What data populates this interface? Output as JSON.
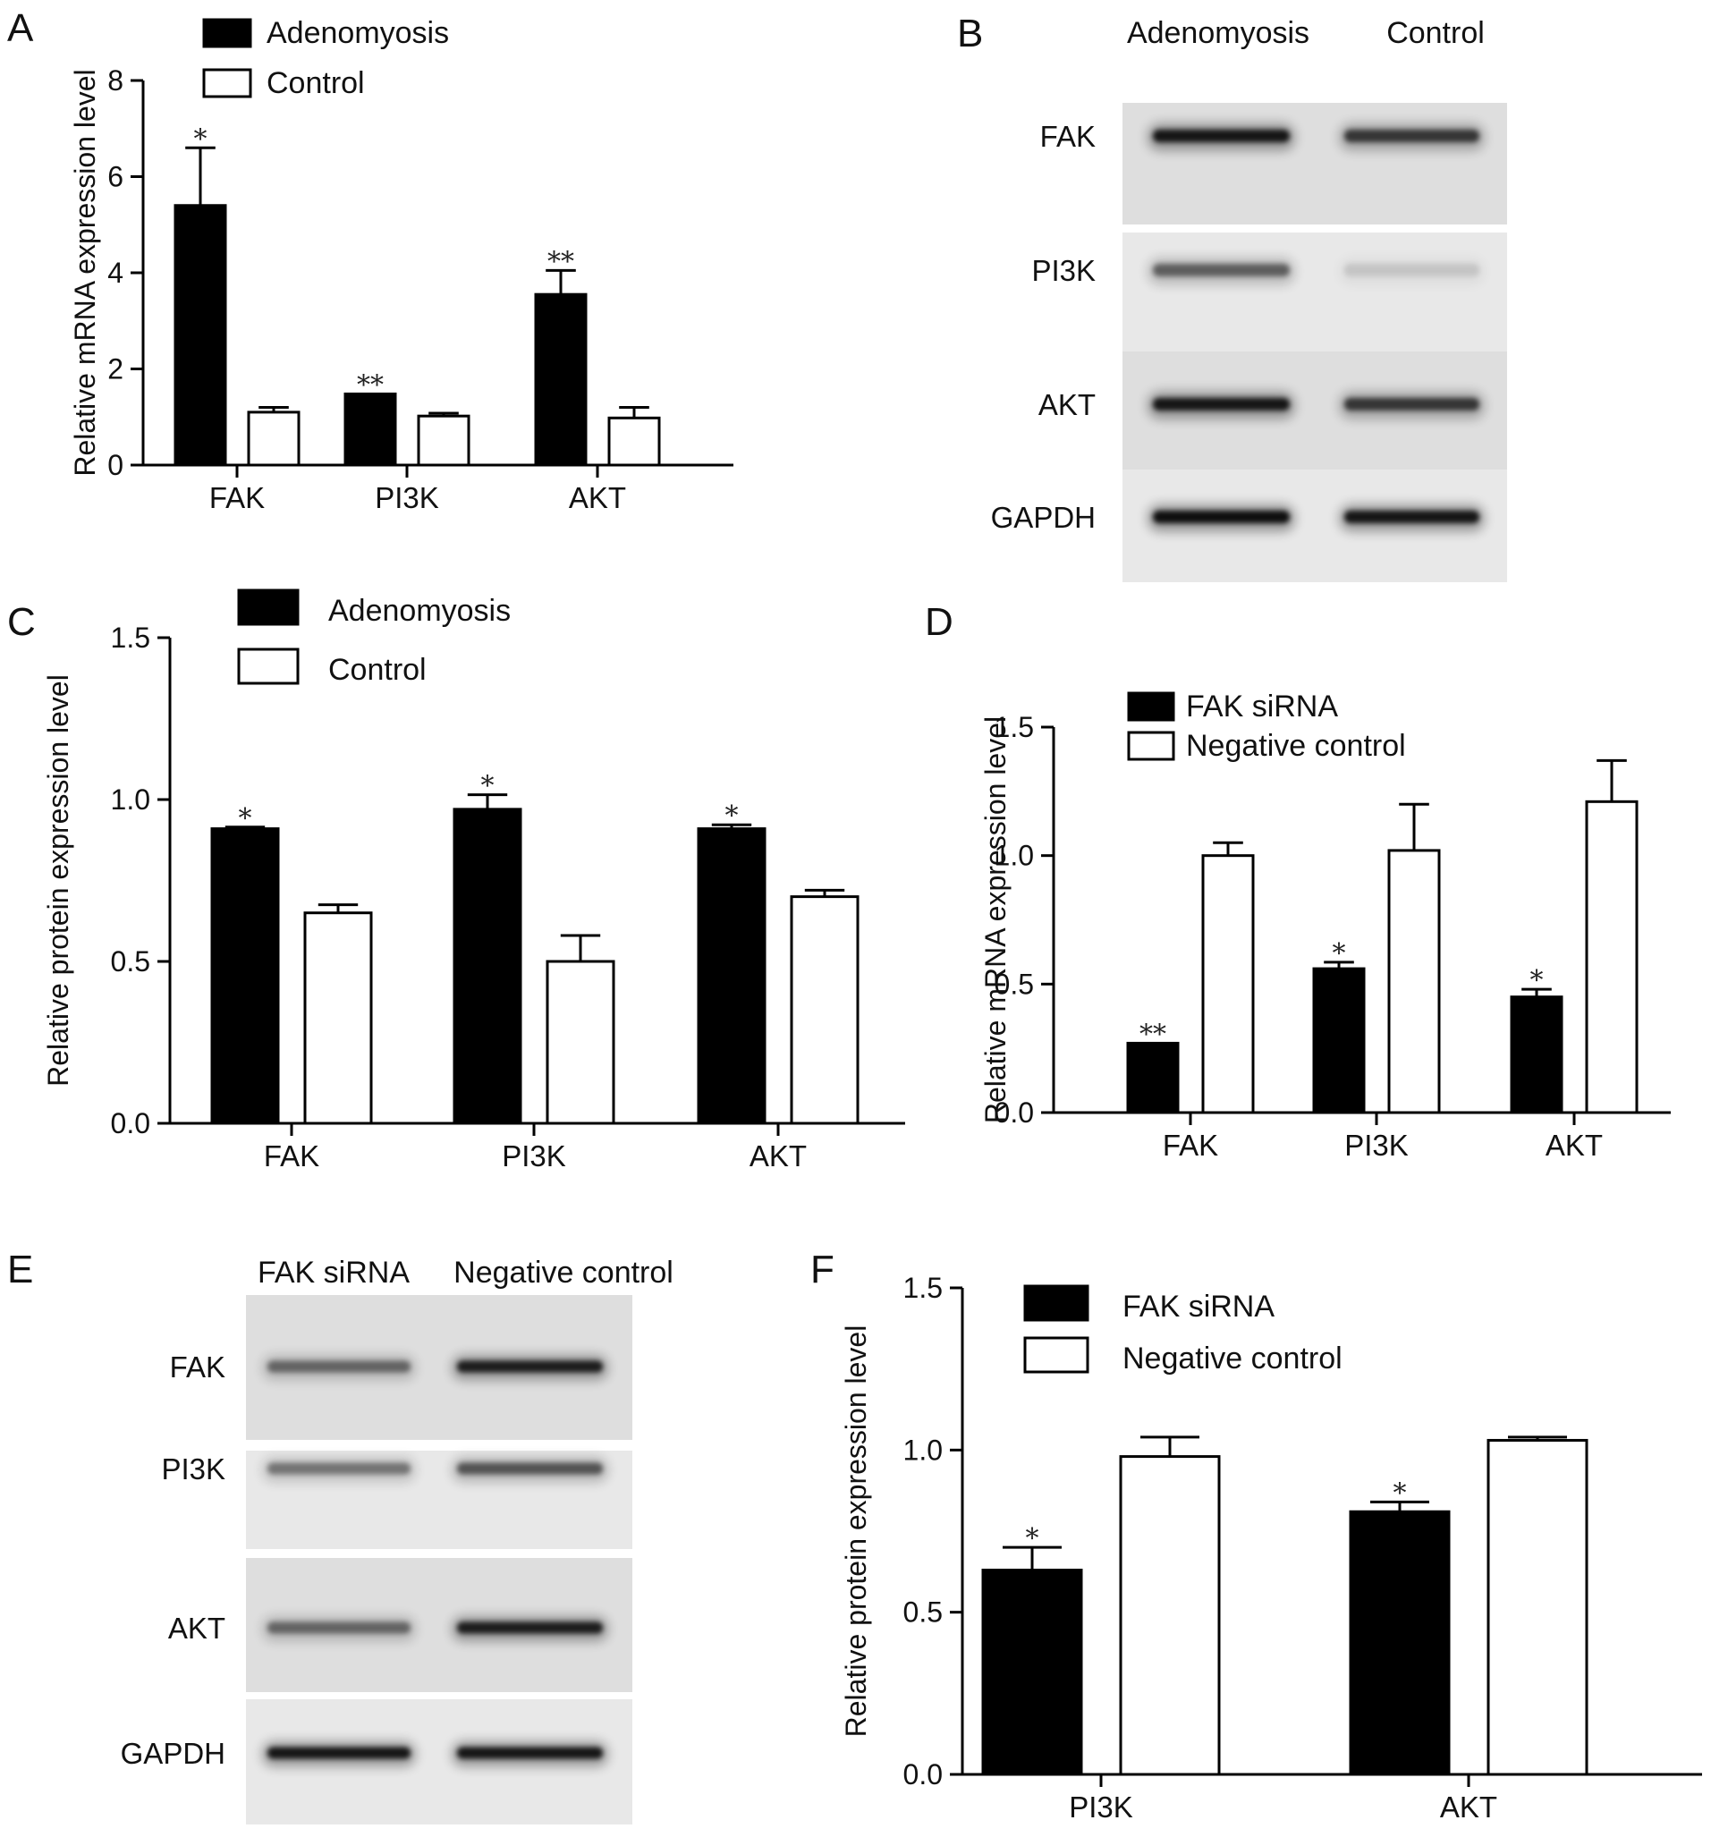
{
  "colors": {
    "series_filled": "#000000",
    "series_open": "#ffffff",
    "axis": "#000000"
  },
  "chart_data": [
    {
      "panel": "A",
      "type": "bar",
      "categories": [
        "FAK",
        "PI3K",
        "AKT"
      ],
      "series": [
        {
          "name": "Adenomyosis",
          "values": [
            5.4,
            1.48,
            3.55
          ],
          "errors": [
            1.2,
            0.0,
            0.5
          ],
          "significance": [
            "*",
            "**",
            "**"
          ]
        },
        {
          "name": "Control",
          "values": [
            1.1,
            1.02,
            0.98
          ],
          "errors": [
            0.1,
            0.06,
            0.22
          ],
          "significance": [
            "",
            "",
            ""
          ]
        }
      ],
      "ylabel": "Relative mRNA expression level",
      "ylim": [
        0,
        8
      ],
      "yticks": [
        0,
        2,
        4,
        6,
        8
      ],
      "ytick_labels": [
        "0",
        "2",
        "4",
        "6",
        "8"
      ],
      "legend_position": "top-left"
    },
    {
      "panel": "C",
      "type": "bar",
      "categories": [
        "FAK",
        "PI3K",
        "AKT"
      ],
      "series": [
        {
          "name": "Adenomyosis",
          "values": [
            0.91,
            0.97,
            0.91
          ],
          "errors": [
            0.005,
            0.045,
            0.012
          ],
          "significance": [
            "*",
            "*",
            "*"
          ]
        },
        {
          "name": "Control",
          "values": [
            0.65,
            0.5,
            0.7
          ],
          "errors": [
            0.025,
            0.08,
            0.02
          ],
          "significance": [
            "",
            "",
            ""
          ]
        }
      ],
      "ylabel": "Relative protein expression level",
      "ylim": [
        0,
        1.5
      ],
      "yticks": [
        0,
        0.5,
        1.0,
        1.5
      ],
      "ytick_labels": [
        "0.0",
        "0.5",
        "1.0",
        "1.5"
      ],
      "legend_position": "top-left"
    },
    {
      "panel": "D",
      "type": "bar",
      "categories": [
        "FAK",
        "PI3K",
        "AKT"
      ],
      "series": [
        {
          "name": "FAK siRNA",
          "values": [
            0.27,
            0.56,
            0.45
          ],
          "errors": [
            0.0,
            0.025,
            0.03
          ],
          "significance": [
            "**",
            "*",
            "*"
          ]
        },
        {
          "name": "Negative control",
          "values": [
            1.0,
            1.02,
            1.21
          ],
          "errors": [
            0.05,
            0.18,
            0.16
          ],
          "significance": [
            "",
            "",
            ""
          ]
        }
      ],
      "ylabel": "Relative mRNA expression level",
      "ylim": [
        0,
        1.5
      ],
      "yticks": [
        0,
        0.5,
        1.0,
        1.5
      ],
      "ytick_labels": [
        "0.0",
        "0.5",
        "1.0",
        "1.5"
      ],
      "legend_position": "top-left"
    },
    {
      "panel": "F",
      "type": "bar",
      "categories": [
        "PI3K",
        "AKT"
      ],
      "series": [
        {
          "name": "FAK siRNA",
          "values": [
            0.63,
            0.81
          ],
          "errors": [
            0.07,
            0.03
          ],
          "significance": [
            "*",
            "*"
          ]
        },
        {
          "name": "Negative control",
          "values": [
            0.98,
            1.03
          ],
          "errors": [
            0.06,
            0.01
          ],
          "significance": [
            "",
            ""
          ]
        }
      ],
      "ylabel": "Relative protein expression level",
      "ylim": [
        0,
        1.5
      ],
      "yticks": [
        0,
        0.5,
        1.0,
        1.5
      ],
      "ytick_labels": [
        "0.0",
        "0.5",
        "1.0",
        "1.5"
      ],
      "legend_position": "top-left"
    }
  ],
  "blots": [
    {
      "panel": "B",
      "columns": [
        "Adenomyosis",
        "Control"
      ],
      "rows": [
        "FAK",
        "PI3K",
        "AKT",
        "GAPDH"
      ],
      "band_intensity": [
        [
          0.95,
          0.75
        ],
        [
          0.55,
          0.12
        ],
        [
          0.95,
          0.75
        ],
        [
          1.0,
          0.95
        ]
      ]
    },
    {
      "panel": "E",
      "columns": [
        "FAK siRNA",
        "Negative control"
      ],
      "rows": [
        "FAK",
        "PI3K",
        "AKT",
        "GAPDH"
      ],
      "band_intensity": [
        [
          0.5,
          0.9
        ],
        [
          0.45,
          0.6
        ],
        [
          0.5,
          0.9
        ],
        [
          0.95,
          0.95
        ]
      ]
    }
  ]
}
